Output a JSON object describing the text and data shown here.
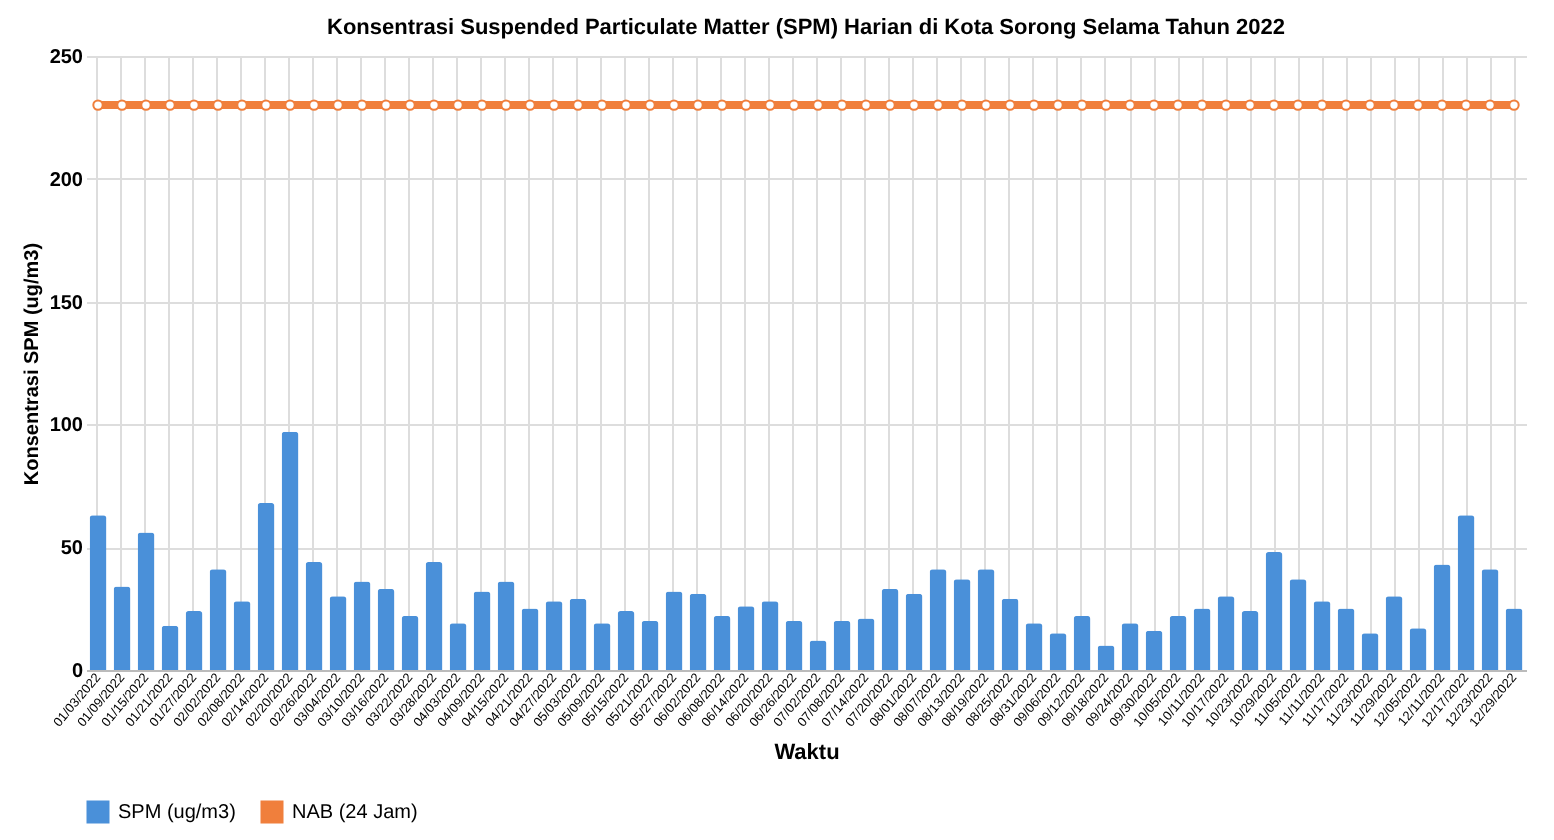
{
  "chart_data": {
    "type": "bar",
    "title": "Konsentrasi Suspended Particulate Matter (SPM) Harian di Kota Sorong Selama Tahun 2022",
    "xlabel": "Waktu",
    "ylabel": "Konsentrasi SPM (ug/m3)",
    "categories": [
      "01/03/2022",
      "01/09/2022",
      "01/15/2022",
      "01/21/2022",
      "01/27/2022",
      "02/02/2022",
      "02/08/2022",
      "02/14/2022",
      "02/20/2022",
      "02/26/2022",
      "03/04/2022",
      "03/10/2022",
      "03/16/2022",
      "03/22/2022",
      "03/28/2022",
      "04/03/2022",
      "04/09/2022",
      "04/15/2022",
      "04/21/2022",
      "04/27/2022",
      "05/03/2022",
      "05/09/2022",
      "05/15/2022",
      "05/21/2022",
      "05/27/2022",
      "06/02/2022",
      "06/08/2022",
      "06/14/2022",
      "06/20/2022",
      "06/26/2022",
      "07/02/2022",
      "07/08/2022",
      "07/14/2022",
      "07/20/2022",
      "08/01/2022",
      "08/07/2022",
      "08/13/2022",
      "08/19/2022",
      "08/25/2022",
      "08/31/2022",
      "09/06/2022",
      "09/12/2022",
      "09/18/2022",
      "09/24/2022",
      "09/30/2022",
      "10/05/2022",
      "10/11/2022",
      "10/17/2022",
      "10/23/2022",
      "10/29/2022",
      "11/05/2022",
      "11/11/2022",
      "11/17/2022",
      "11/23/2022",
      "11/29/2022",
      "12/05/2022",
      "12/11/2022",
      "12/17/2022",
      "12/23/2022",
      "12/29/2022"
    ],
    "series": [
      {
        "name": "SPM (ug/m3)",
        "color": "#4a90d9",
        "values": [
          63,
          34,
          56,
          18,
          24,
          41,
          28,
          68,
          97,
          44,
          30,
          36,
          33,
          22,
          44,
          19,
          32,
          36,
          25,
          28,
          29,
          19,
          24,
          20,
          32,
          31,
          22,
          26,
          28,
          20,
          12,
          20,
          21,
          33,
          31,
          41,
          37,
          41,
          29,
          19,
          15,
          22,
          10,
          19,
          16,
          22,
          25,
          30,
          24,
          48,
          37,
          28,
          25,
          15,
          30,
          17,
          43,
          63,
          41,
          25
        ]
      },
      {
        "name": "NAB (24 Jam)",
        "type": "line",
        "color": "#f07f3c",
        "values": [
          230,
          230,
          230,
          230,
          230,
          230,
          230,
          230,
          230,
          230,
          230,
          230,
          230,
          230,
          230,
          230,
          230,
          230,
          230,
          230,
          230,
          230,
          230,
          230,
          230,
          230,
          230,
          230,
          230,
          230,
          230,
          230,
          230,
          230,
          230,
          230,
          230,
          230,
          230,
          230,
          230,
          230,
          230,
          230,
          230,
          230,
          230,
          230,
          230,
          230,
          230,
          230,
          230,
          230,
          230,
          230,
          230,
          230,
          230,
          230
        ]
      }
    ],
    "ylim": [
      0,
      250
    ],
    "yticks": [
      0,
      50,
      100,
      150,
      200,
      250
    ],
    "grid": true,
    "legend": "bottom left",
    "marker": "circle"
  }
}
